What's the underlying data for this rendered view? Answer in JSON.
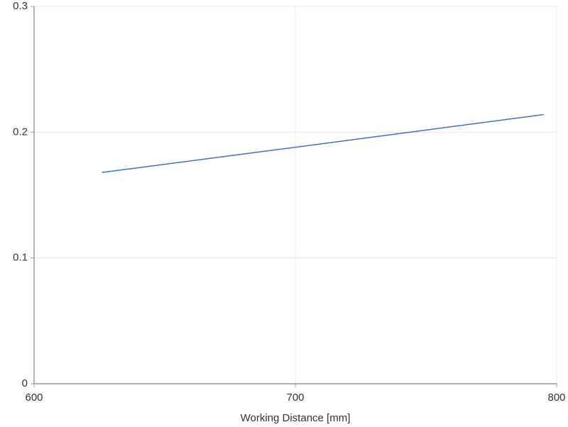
{
  "chart_data": {
    "type": "line",
    "x_label": "Working Distance [mm]",
    "x": [
      626,
      700,
      795
    ],
    "series": [
      {
        "color": "#3a6fcf",
        "values": [
          0.168,
          0.188,
          0.214
        ]
      }
    ],
    "xlim": [
      600,
      800
    ],
    "xticks": [
      600,
      700,
      800
    ],
    "ylim": [
      0,
      0.3
    ],
    "yticks": [
      0,
      0.1,
      0.2,
      0.3
    ],
    "grid": true
  }
}
